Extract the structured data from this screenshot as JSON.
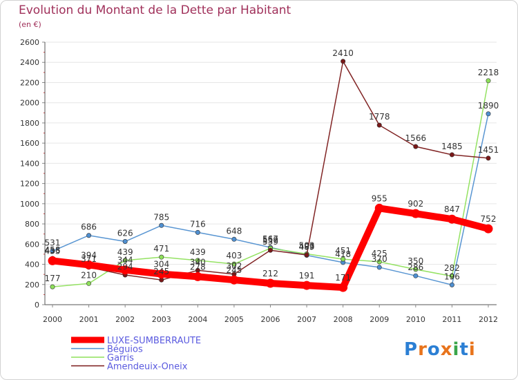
{
  "chart_data": {
    "type": "line",
    "title": "Evolution du Montant de la Dette par Habitant",
    "subtitle": "(en €)",
    "xlabel": "",
    "ylabel": "",
    "categories": [
      "2000",
      "2001",
      "2002",
      "2003",
      "2004",
      "2005",
      "2006",
      "2007",
      "2008",
      "2009",
      "2010",
      "2011",
      "2012"
    ],
    "ylim": [
      0,
      2600
    ],
    "yticks": [
      0,
      200,
      400,
      600,
      800,
      1000,
      1200,
      1400,
      1600,
      1800,
      2000,
      2200,
      2400,
      2600
    ],
    "grid": "horizontal",
    "legend_position": "bottom-left",
    "series": [
      {
        "name": "LUXE-SUMBERRAUTE",
        "color": "#ff0000",
        "labelColor": "#333333",
        "values": [
          435,
          394,
          344,
          304,
          278,
          245,
          212,
          191,
          171,
          955,
          902,
          847,
          752
        ],
        "labels": [
          "435",
          "394",
          "344",
          "304",
          "278",
          "245",
          "212",
          "191",
          "171",
          "955",
          "902",
          "847",
          "752"
        ]
      },
      {
        "name": "Béguios",
        "color": "#4f8fd0",
        "labelColor": "#333333",
        "values": [
          531,
          686,
          626,
          785,
          716,
          648,
          567,
          489,
          418,
          370,
          286,
          196,
          1890
        ],
        "labels": [
          "531",
          "686",
          "626",
          "785",
          "716",
          "648",
          "567",
          "489",
          "418",
          "370",
          "286",
          "196",
          "1890"
        ]
      },
      {
        "name": "Garris",
        "color": "#8ee05a",
        "labelColor": "#333333",
        "values": [
          177,
          210,
          439,
          471,
          439,
          403,
          559,
          503,
          451,
          425,
          350,
          282,
          2218
        ],
        "labels": [
          "177",
          "210",
          "439",
          "471",
          "439",
          "403",
          "559",
          "503",
          "451",
          "425",
          "350",
          "282",
          "2218"
        ]
      },
      {
        "name": "Amendeuix-Oneix",
        "color": "#7a1818",
        "labelColor": "#333333",
        "values": [
          458,
          371,
          294,
          245,
          340,
          302,
          539,
          493,
          2410,
          1778,
          1566,
          1485,
          1451
        ],
        "labels": [
          "458",
          "371",
          "294",
          "245",
          "340",
          "302",
          "539",
          "493",
          "2410",
          "1778",
          "1566",
          "1485",
          "1451"
        ]
      }
    ]
  },
  "logo": {
    "text": "Proxiti",
    "colors": [
      "#2b7fd4",
      "#e8741c",
      "#2b7fd4",
      "#e8741c",
      "#3aa54a",
      "#2b7fd4",
      "#e8741c"
    ]
  },
  "colors": {
    "title": "#a0305a",
    "legend_text": "#5a5adf",
    "axis": "#333333",
    "grid": "#e6e6e6"
  }
}
